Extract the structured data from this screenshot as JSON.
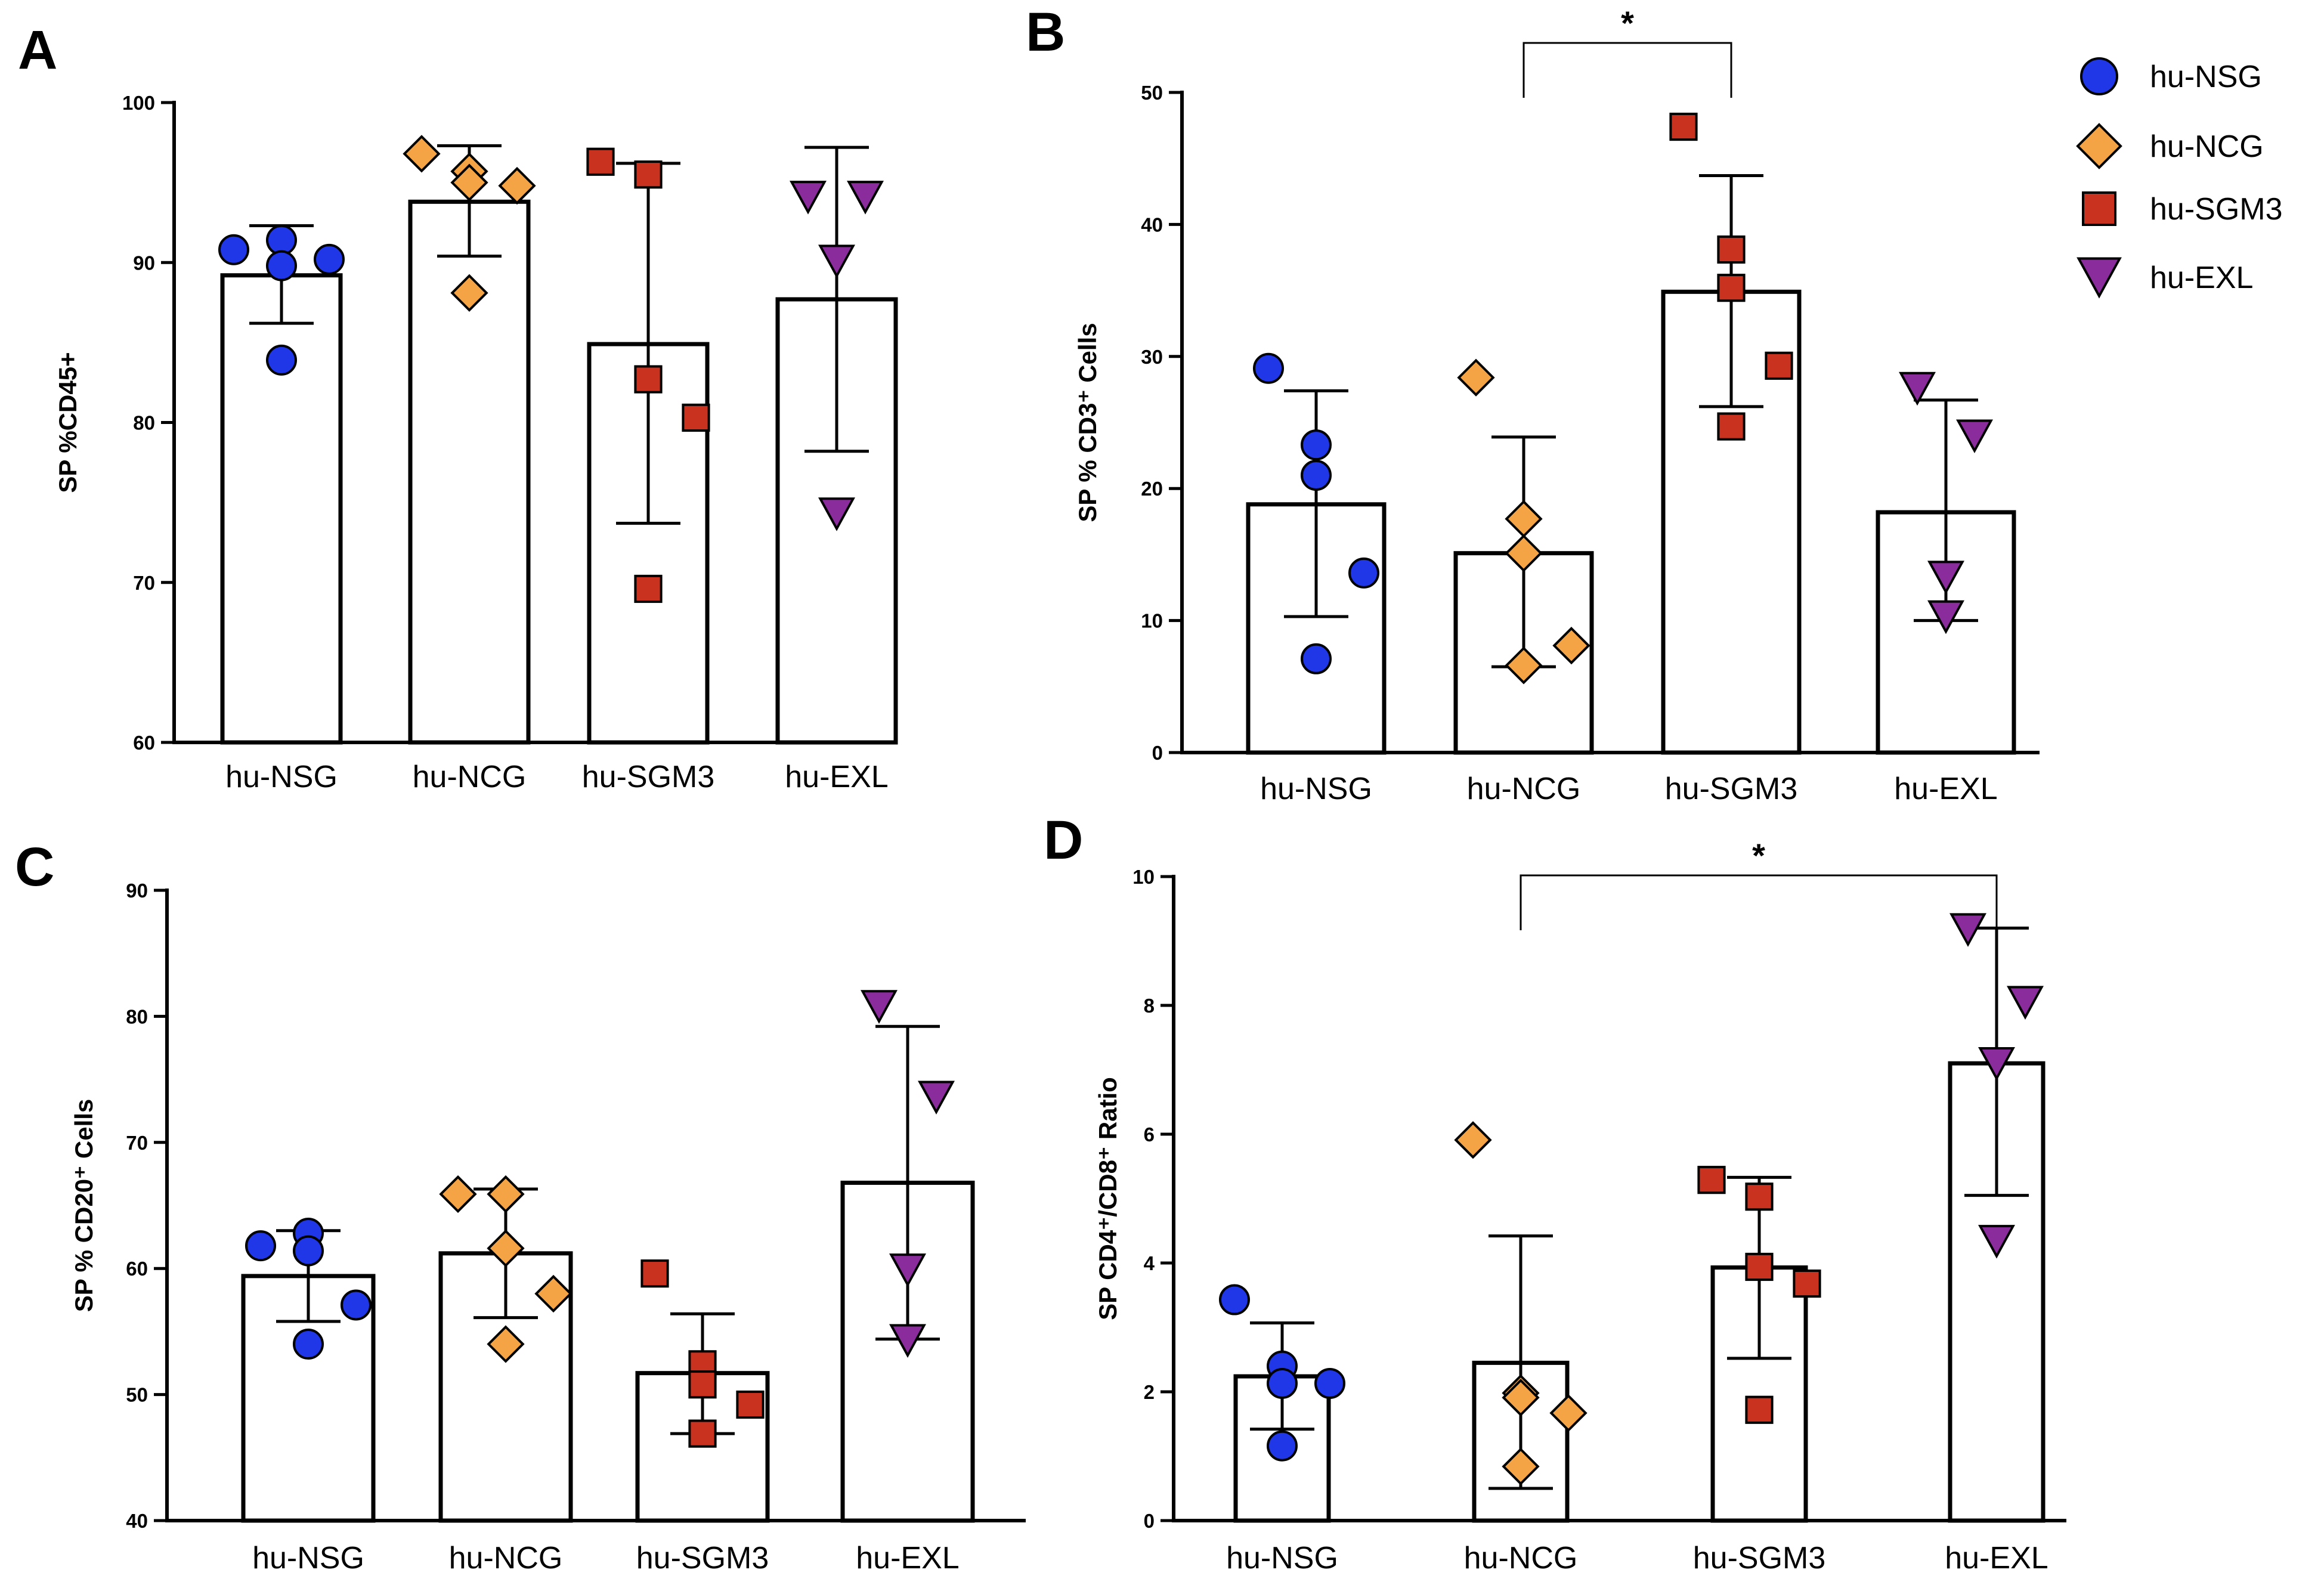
{
  "legend": {
    "entries": [
      {
        "label": "hu-NSG",
        "color": "#1f37e6",
        "marker": "circle"
      },
      {
        "label": "hu-NCG",
        "color": "#f5a445",
        "marker": "diamond"
      },
      {
        "label": "hu-SGM3",
        "color": "#c8321e",
        "marker": "square"
      },
      {
        "label": "hu-EXL",
        "color": "#8a2c9c",
        "marker": "triangle-down"
      }
    ]
  },
  "chart_data": [
    {
      "panel": "A",
      "type": "bar",
      "ylabel": "SP %CD45+",
      "ylim": [
        60,
        100
      ],
      "yticks": [
        60,
        70,
        80,
        90,
        100
      ],
      "categories": [
        "hu-NSG",
        "hu-NCG",
        "hu-SGM3",
        "hu-EXL"
      ],
      "means": [
        89.2,
        93.8,
        84.9,
        87.7
      ],
      "errors": [
        [
          86.2,
          92.3
        ],
        [
          90.4,
          97.3
        ],
        [
          73.7,
          96.2
        ],
        [
          78.2,
          97.2
        ]
      ],
      "points": [
        [
          90.8,
          91.4,
          89.8,
          90.2,
          83.9
        ],
        [
          96.8,
          95.7,
          95.0,
          94.8,
          88.1
        ],
        [
          96.3,
          95.5,
          82.7,
          80.3,
          69.6
        ],
        [
          94.1,
          94.1,
          90.1,
          74.3
        ]
      ],
      "significance": []
    },
    {
      "panel": "B",
      "type": "bar",
      "ylabel": "SP % CD3⁺ Cells",
      "ylim": [
        0,
        50
      ],
      "yticks": [
        0,
        10,
        20,
        30,
        40,
        50
      ],
      "categories": [
        "hu-NSG",
        "hu-NCG",
        "hu-SGM3",
        "hu-EXL"
      ],
      "means": [
        18.8,
        15.1,
        34.9,
        18.2
      ],
      "errors": [
        [
          10.3,
          27.4
        ],
        [
          6.5,
          23.9
        ],
        [
          26.2,
          43.7
        ],
        [
          10.0,
          26.7
        ]
      ],
      "points": [
        [
          29.1,
          23.3,
          21.0,
          13.6,
          7.1
        ],
        [
          28.4,
          17.7,
          15.1,
          8.1,
          6.6
        ],
        [
          47.4,
          38.1,
          35.2,
          29.3,
          24.7
        ],
        [
          27.6,
          24.0,
          13.3,
          10.3
        ]
      ],
      "significance": [
        {
          "from": 1,
          "to": 2,
          "label": "*"
        }
      ]
    },
    {
      "panel": "C",
      "type": "bar",
      "ylabel": "SP % CD20⁺ Cells",
      "ylim": [
        40,
        90
      ],
      "yticks": [
        40,
        50,
        60,
        70,
        80,
        90
      ],
      "categories": [
        "hu-NSG",
        "hu-NCG",
        "hu-SGM3",
        "hu-EXL"
      ],
      "means": [
        59.4,
        61.2,
        51.7,
        66.8
      ],
      "errors": [
        [
          55.8,
          63.0
        ],
        [
          56.1,
          66.3
        ],
        [
          46.9,
          56.4
        ],
        [
          54.4,
          79.2
        ]
      ],
      "points": [
        [
          61.8,
          62.8,
          61.4,
          57.1,
          54.0
        ],
        [
          65.9,
          65.9,
          61.6,
          58.0,
          54.0
        ],
        [
          59.6,
          52.4,
          50.8,
          49.2,
          46.9
        ],
        [
          80.8,
          73.6,
          59.9,
          54.3
        ]
      ],
      "significance": []
    },
    {
      "panel": "D",
      "type": "bar",
      "ylabel": "SP CD4⁺/CD8⁺ Ratio",
      "ylim": [
        0,
        10
      ],
      "yticks": [
        0,
        2,
        4,
        6,
        8,
        10
      ],
      "categories": [
        "hu-NSG",
        "hu-NCG",
        "hu-SGM3",
        "hu-EXL"
      ],
      "means": [
        2.24,
        2.45,
        3.93,
        7.1
      ],
      "errors": [
        [
          1.42,
          3.07
        ],
        [
          0.5,
          4.42
        ],
        [
          2.52,
          5.33
        ],
        [
          5.05,
          9.2
        ]
      ],
      "points": [
        [
          3.43,
          2.4,
          2.13,
          2.13,
          1.16
        ],
        [
          5.91,
          1.98,
          1.91,
          1.67,
          0.84
        ],
        [
          5.29,
          5.03,
          3.94,
          3.68,
          1.72
        ],
        [
          9.18,
          8.05,
          7.1,
          4.34
        ]
      ],
      "significance": [
        {
          "from": 1,
          "to": 3,
          "label": "*"
        }
      ]
    }
  ]
}
